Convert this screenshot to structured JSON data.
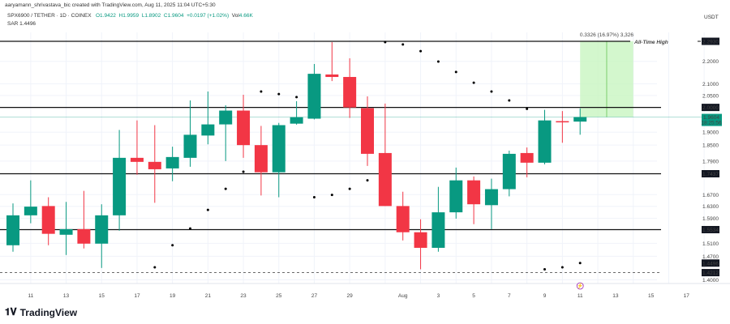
{
  "header": {
    "credit": "aaryamann_shrivastava_bic created with TradingView.com, Aug 11, 2025 11:04 UTC+5:30",
    "symbol": "SPX6900 / TETHER · 1D · COINEX",
    "open": "O1.9422",
    "high": "H1.9959",
    "low": "L1.8902",
    "close": "C1.9604",
    "change": "+0.0197 (+1.02%)",
    "volume_label": "Vol",
    "volume": "4.66K",
    "sar": "SAR 1.4496",
    "currency": "USDT"
  },
  "footer": {
    "logo": "TradingView"
  },
  "colors": {
    "up": "#089981",
    "down": "#f23645",
    "sar": "#000000",
    "measure": "#c8f5c0"
  },
  "chart_data": {
    "type": "candlestick",
    "scale": "log",
    "ylim": [
      1.39,
      2.35
    ],
    "x": [
      "Jul 10",
      "Jul 11",
      "Jul 12",
      "Jul 13",
      "Jul 14",
      "Jul 15",
      "Jul 16",
      "Jul 17",
      "Jul 18",
      "Jul 19",
      "Jul 20",
      "Jul 21",
      "Jul 22",
      "Jul 23",
      "Jul 24",
      "Jul 25",
      "Jul 26",
      "Jul 27",
      "Jul 28",
      "Jul 29",
      "Jul 30",
      "Jul 31",
      "Aug 1",
      "Aug 2",
      "Aug 3",
      "Aug 4",
      "Aug 5",
      "Aug 6",
      "Aug 7",
      "Aug 8",
      "Aug 9",
      "Aug 10",
      "Aug 11"
    ],
    "ohlc": [
      [
        1.504,
        1.64,
        1.484,
        1.6
      ],
      [
        1.6,
        1.72,
        1.574,
        1.629
      ],
      [
        1.631,
        1.661,
        1.504,
        1.54
      ],
      [
        1.537,
        1.645,
        1.474,
        1.555
      ],
      [
        1.555,
        1.683,
        1.494,
        1.509
      ],
      [
        1.509,
        1.637,
        1.435,
        1.6
      ],
      [
        1.6,
        1.909,
        1.55,
        1.802
      ],
      [
        1.802,
        1.947,
        1.74,
        1.787
      ],
      [
        1.787,
        1.928,
        1.642,
        1.76
      ],
      [
        1.763,
        1.844,
        1.717,
        1.805
      ],
      [
        1.802,
        2.029,
        1.769,
        1.89
      ],
      [
        1.887,
        2.067,
        1.853,
        1.931
      ],
      [
        1.931,
        2.009,
        1.79,
        1.987
      ],
      [
        1.987,
        2.053,
        1.802,
        1.85
      ],
      [
        1.85,
        1.925,
        1.667,
        1.749
      ],
      [
        1.749,
        1.937,
        1.661,
        1.928
      ],
      [
        1.934,
        2.026,
        1.93,
        1.96
      ],
      [
        1.954,
        2.188,
        1.951,
        2.144
      ],
      [
        2.141,
        2.289,
        2.112,
        2.13
      ],
      [
        2.13,
        2.214,
        1.957,
        2.0
      ],
      [
        1.997,
        2.046,
        1.772,
        1.817
      ],
      [
        1.82,
        2.016,
        1.631,
        1.631
      ],
      [
        1.631,
        1.68,
        1.519,
        1.545
      ],
      [
        1.545,
        1.587,
        1.431,
        1.496
      ],
      [
        1.496,
        1.697,
        1.484,
        1.61
      ],
      [
        1.61,
        1.766,
        1.589,
        1.72
      ],
      [
        1.72,
        1.734,
        1.571,
        1.637
      ],
      [
        1.634,
        1.726,
        1.555,
        1.689
      ],
      [
        1.689,
        1.829,
        1.664,
        1.817
      ],
      [
        1.82,
        1.841,
        1.731,
        1.784
      ],
      [
        1.784,
        1.99,
        1.778,
        1.947
      ],
      [
        1.944,
        1.985,
        1.859,
        1.941
      ],
      [
        1.9422,
        1.9959,
        1.8902,
        1.9604
      ]
    ],
    "sar": {
      "start_index": 8,
      "values": [
        1.437,
        1.504,
        1.557,
        1.618,
        1.69,
        1.751,
        2.067,
        2.056,
        2.043,
        1.661,
        1.669,
        1.69,
        1.72,
        2.289,
        2.278,
        2.247,
        2.199,
        2.152,
        2.105,
        2.067,
        2.029,
        1.994,
        1.431,
        1.437,
        1.4496
      ]
    },
    "hlines": [
      {
        "value": 2.293,
        "label": "2.2930",
        "annotation": "All-Time High",
        "style": "solid"
      },
      {
        "value": 2.0,
        "label": "2.0000",
        "style": "solid"
      },
      {
        "value": 1.7437,
        "label": "1.7437",
        "style": "solid"
      },
      {
        "value": 1.5534,
        "label": "1.5534",
        "style": "solid"
      },
      {
        "value": 1.4212,
        "label": "1.4212",
        "style": "dashed"
      }
    ],
    "y_ticks": [
      "2.2000",
      "2.1000",
      "2.0500",
      "1.9000",
      "1.8500",
      "1.7900",
      "1.6700",
      "1.6300",
      "1.5900",
      "1.5100",
      "1.4700",
      "1.4000"
    ],
    "current_price": {
      "value": 1.9604,
      "label": "1.9604",
      "countdown": "18:25:56"
    },
    "sar_badge": {
      "value": 1.4496,
      "label": "1.4496"
    },
    "measure": {
      "from_index": 32,
      "to_index": 35,
      "low": 1.9604,
      "high": 2.293,
      "label": "0.3326 (16.97%) 3,326"
    },
    "x_ticks": [
      {
        "label": "11",
        "index": 1
      },
      {
        "label": "13",
        "index": 3
      },
      {
        "label": "15",
        "index": 5
      },
      {
        "label": "17",
        "index": 7
      },
      {
        "label": "19",
        "index": 9
      },
      {
        "label": "21",
        "index": 11
      },
      {
        "label": "23",
        "index": 13
      },
      {
        "label": "25",
        "index": 15
      },
      {
        "label": "27",
        "index": 17
      },
      {
        "label": "29",
        "index": 19
      },
      {
        "label": "Aug",
        "index": 22
      },
      {
        "label": "3",
        "index": 24
      },
      {
        "label": "5",
        "index": 26
      },
      {
        "label": "7",
        "index": 28
      },
      {
        "label": "9",
        "index": 30
      },
      {
        "label": "11",
        "index": 32
      },
      {
        "label": "13",
        "index": 34
      },
      {
        "label": "15",
        "index": 36
      },
      {
        "label": "17",
        "index": 38
      }
    ]
  }
}
